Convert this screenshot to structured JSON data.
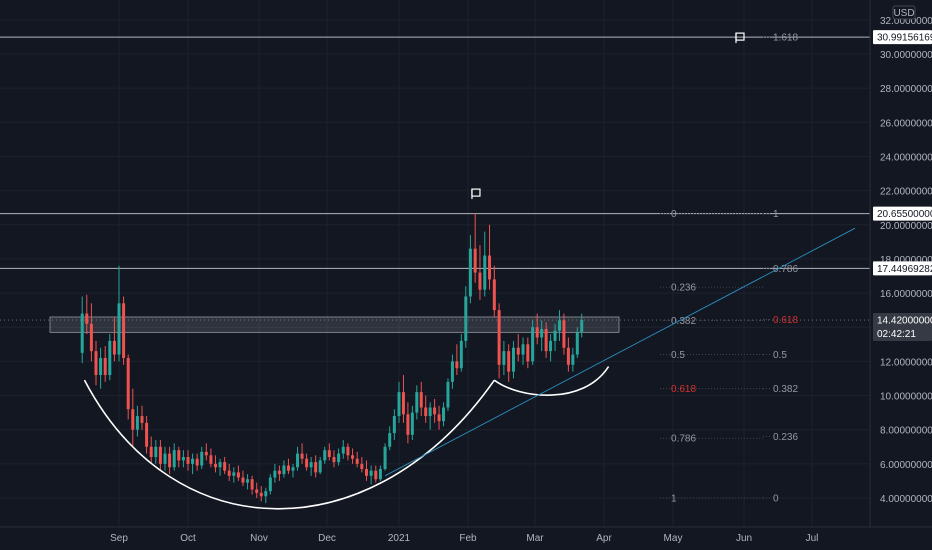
{
  "chart_data": {
    "type": "candlestick",
    "currency": "USD",
    "x_labels": [
      "Sep",
      "Oct",
      "Nov",
      "Dec",
      "2021",
      "Feb",
      "Mar",
      "Apr",
      "May",
      "Jun",
      "Jul"
    ],
    "y_ticks": [
      "4.00000000",
      "6.00000000",
      "8.00000000",
      "10.00000000",
      "12.00000000",
      "14.00000000",
      "16.00000000",
      "18.00000000",
      "20.00000000",
      "22.00000000",
      "24.00000000",
      "26.00000000",
      "28.00000000",
      "30.00000000",
      "32.00000000"
    ],
    "ylim": [
      2.0,
      32.3
    ],
    "price_tags": [
      {
        "label": "30.99156169",
        "value": 30.99156169
      },
      {
        "label": "20.65500000",
        "value": 20.655
      },
      {
        "label": "17.44969282",
        "value": 17.44969282
      }
    ],
    "current_price": {
      "label": "14.42000000",
      "value": 14.42,
      "countdown": "02:42:21"
    },
    "fib_retracement": [
      {
        "label": "0",
        "value": 20.655
      },
      {
        "label": "0.236",
        "value": 16.35
      },
      {
        "label": "0.382",
        "value": 14.4
      },
      {
        "label": "0.5",
        "value": 12.4
      },
      {
        "label": "0.618",
        "value": 10.4,
        "highlight": true
      },
      {
        "label": "0.786",
        "value": 7.5
      },
      {
        "label": "1",
        "value": 4.0
      }
    ],
    "fib_extension": [
      {
        "label": "1.618",
        "value": 30.99
      },
      {
        "label": "1",
        "value": 20.655
      },
      {
        "label": "0.786",
        "value": 17.45
      },
      {
        "label": "0.618",
        "value": 14.45,
        "highlight": true
      },
      {
        "label": "0.5",
        "value": 12.4
      },
      {
        "label": "0.382",
        "value": 10.4
      },
      {
        "label": "0.236",
        "value": 7.6
      },
      {
        "label": "0",
        "value": 4.0
      }
    ],
    "resistance_zone": [
      13.7,
      14.6
    ],
    "series": [
      {
        "date": "2020-08-16",
        "open": 12.5,
        "high": 15.8,
        "low": 11.9,
        "close": 14.8
      },
      {
        "date": "2020-08-18",
        "open": 14.8,
        "high": 15.9,
        "low": 13.6,
        "close": 14.2
      },
      {
        "date": "2020-08-20",
        "open": 14.2,
        "high": 15.4,
        "low": 12.0,
        "close": 12.6
      },
      {
        "date": "2020-08-22",
        "open": 12.6,
        "high": 13.2,
        "low": 10.6,
        "close": 11.2
      },
      {
        "date": "2020-08-24",
        "open": 11.2,
        "high": 12.8,
        "low": 10.4,
        "close": 12.2
      },
      {
        "date": "2020-08-26",
        "open": 12.2,
        "high": 12.9,
        "low": 10.8,
        "close": 11.2
      },
      {
        "date": "2020-08-28",
        "open": 11.2,
        "high": 13.6,
        "low": 10.9,
        "close": 13.2
      },
      {
        "date": "2020-08-30",
        "open": 13.2,
        "high": 14.6,
        "low": 12.0,
        "close": 12.4
      },
      {
        "date": "2020-09-01",
        "open": 12.4,
        "high": 17.6,
        "low": 12.0,
        "close": 15.4
      },
      {
        "date": "2020-09-03",
        "open": 15.4,
        "high": 15.8,
        "low": 11.8,
        "close": 12.2
      },
      {
        "date": "2020-09-05",
        "open": 12.2,
        "high": 12.4,
        "low": 8.6,
        "close": 9.2
      },
      {
        "date": "2020-09-07",
        "open": 9.2,
        "high": 10.4,
        "low": 7.0,
        "close": 8.0
      },
      {
        "date": "2020-09-09",
        "open": 8.0,
        "high": 9.4,
        "low": 7.6,
        "close": 8.8
      },
      {
        "date": "2020-09-11",
        "open": 8.8,
        "high": 9.4,
        "low": 8.0,
        "close": 8.4
      },
      {
        "date": "2020-09-13",
        "open": 8.4,
        "high": 8.8,
        "low": 6.6,
        "close": 7.0
      },
      {
        "date": "2020-09-15",
        "open": 7.0,
        "high": 7.6,
        "low": 6.0,
        "close": 6.4
      },
      {
        "date": "2020-09-17",
        "open": 6.4,
        "high": 7.4,
        "low": 6.0,
        "close": 7.0
      },
      {
        "date": "2020-09-19",
        "open": 7.0,
        "high": 7.4,
        "low": 5.6,
        "close": 6.0
      },
      {
        "date": "2020-09-21",
        "open": 6.0,
        "high": 7.0,
        "low": 5.6,
        "close": 6.6
      },
      {
        "date": "2020-09-23",
        "open": 6.6,
        "high": 7.0,
        "low": 5.4,
        "close": 5.8
      },
      {
        "date": "2020-09-25",
        "open": 5.8,
        "high": 7.2,
        "low": 5.6,
        "close": 6.8
      },
      {
        "date": "2020-09-27",
        "open": 6.8,
        "high": 7.0,
        "low": 5.8,
        "close": 6.2
      },
      {
        "date": "2020-09-29",
        "open": 6.2,
        "high": 6.8,
        "low": 5.8,
        "close": 6.4
      },
      {
        "date": "2020-10-01",
        "open": 6.4,
        "high": 6.8,
        "low": 5.6,
        "close": 6.0
      },
      {
        "date": "2020-10-03",
        "open": 6.0,
        "high": 6.6,
        "low": 5.4,
        "close": 6.3
      },
      {
        "date": "2020-10-05",
        "open": 6.3,
        "high": 6.6,
        "low": 5.6,
        "close": 5.9
      },
      {
        "date": "2020-10-07",
        "open": 5.9,
        "high": 7.0,
        "low": 5.7,
        "close": 6.7
      },
      {
        "date": "2020-10-09",
        "open": 6.7,
        "high": 7.2,
        "low": 6.2,
        "close": 6.5
      },
      {
        "date": "2020-10-11",
        "open": 6.5,
        "high": 6.9,
        "low": 5.8,
        "close": 6.0
      },
      {
        "date": "2020-10-13",
        "open": 6.0,
        "high": 6.5,
        "low": 5.5,
        "close": 5.8
      },
      {
        "date": "2020-10-15",
        "open": 5.8,
        "high": 6.3,
        "low": 5.3,
        "close": 6.1
      },
      {
        "date": "2020-10-17",
        "open": 6.1,
        "high": 6.4,
        "low": 5.4,
        "close": 5.6
      },
      {
        "date": "2020-10-19",
        "open": 5.6,
        "high": 6.0,
        "low": 5.0,
        "close": 5.3
      },
      {
        "date": "2020-10-21",
        "open": 5.3,
        "high": 5.8,
        "low": 4.9,
        "close": 5.5
      },
      {
        "date": "2020-10-23",
        "open": 5.5,
        "high": 5.9,
        "low": 5.0,
        "close": 5.2
      },
      {
        "date": "2020-10-25",
        "open": 5.2,
        "high": 5.6,
        "low": 4.7,
        "close": 4.9
      },
      {
        "date": "2020-10-27",
        "open": 4.9,
        "high": 5.4,
        "low": 4.5,
        "close": 5.1
      },
      {
        "date": "2020-10-29",
        "open": 5.1,
        "high": 5.3,
        "low": 4.2,
        "close": 4.5
      },
      {
        "date": "2020-10-31",
        "open": 4.5,
        "high": 4.9,
        "low": 4.0,
        "close": 4.3
      },
      {
        "date": "2020-11-02",
        "open": 4.3,
        "high": 4.7,
        "low": 3.8,
        "close": 4.1
      },
      {
        "date": "2020-11-04",
        "open": 4.1,
        "high": 4.6,
        "low": 3.7,
        "close": 4.4
      },
      {
        "date": "2020-11-06",
        "open": 4.4,
        "high": 5.4,
        "low": 4.2,
        "close": 5.2
      },
      {
        "date": "2020-11-08",
        "open": 5.2,
        "high": 6.0,
        "low": 4.9,
        "close": 5.6
      },
      {
        "date": "2020-11-10",
        "open": 5.6,
        "high": 5.9,
        "low": 5.0,
        "close": 5.4
      },
      {
        "date": "2020-11-12",
        "open": 5.4,
        "high": 6.2,
        "low": 5.2,
        "close": 5.9
      },
      {
        "date": "2020-11-14",
        "open": 5.9,
        "high": 6.3,
        "low": 5.4,
        "close": 5.6
      },
      {
        "date": "2020-11-16",
        "open": 5.6,
        "high": 6.0,
        "low": 5.2,
        "close": 5.8
      },
      {
        "date": "2020-11-18",
        "open": 5.8,
        "high": 7.0,
        "low": 5.6,
        "close": 6.6
      },
      {
        "date": "2020-11-20",
        "open": 6.6,
        "high": 7.2,
        "low": 6.0,
        "close": 6.3
      },
      {
        "date": "2020-11-22",
        "open": 6.3,
        "high": 6.6,
        "low": 5.6,
        "close": 5.8
      },
      {
        "date": "2020-11-24",
        "open": 5.8,
        "high": 6.4,
        "low": 5.3,
        "close": 6.1
      },
      {
        "date": "2020-11-26",
        "open": 6.1,
        "high": 6.5,
        "low": 5.2,
        "close": 5.5
      },
      {
        "date": "2020-11-28",
        "open": 5.5,
        "high": 6.4,
        "low": 5.4,
        "close": 6.2
      },
      {
        "date": "2020-11-30",
        "open": 6.2,
        "high": 7.0,
        "low": 6.0,
        "close": 6.8
      },
      {
        "date": "2020-12-02",
        "open": 6.8,
        "high": 7.2,
        "low": 6.2,
        "close": 6.4
      },
      {
        "date": "2020-12-04",
        "open": 6.4,
        "high": 6.8,
        "low": 5.8,
        "close": 6.1
      },
      {
        "date": "2020-12-06",
        "open": 6.1,
        "high": 6.9,
        "low": 5.9,
        "close": 6.6
      },
      {
        "date": "2020-12-08",
        "open": 6.6,
        "high": 7.4,
        "low": 6.3,
        "close": 7.0
      },
      {
        "date": "2020-12-10",
        "open": 7.0,
        "high": 7.2,
        "low": 6.2,
        "close": 6.5
      },
      {
        "date": "2020-12-12",
        "open": 6.5,
        "high": 6.9,
        "low": 6.0,
        "close": 6.3
      },
      {
        "date": "2020-12-14",
        "open": 6.3,
        "high": 6.7,
        "low": 5.8,
        "close": 6.0
      },
      {
        "date": "2020-12-16",
        "open": 6.0,
        "high": 6.4,
        "low": 5.5,
        "close": 5.7
      },
      {
        "date": "2020-12-18",
        "open": 5.7,
        "high": 6.2,
        "low": 5.0,
        "close": 5.3
      },
      {
        "date": "2020-12-20",
        "open": 5.3,
        "high": 5.9,
        "low": 4.8,
        "close": 5.6
      },
      {
        "date": "2020-12-22",
        "open": 5.6,
        "high": 5.9,
        "low": 4.9,
        "close": 5.1
      },
      {
        "date": "2020-12-24",
        "open": 5.1,
        "high": 5.9,
        "low": 5.0,
        "close": 5.7
      },
      {
        "date": "2020-12-26",
        "open": 5.7,
        "high": 7.2,
        "low": 5.6,
        "close": 7.0
      },
      {
        "date": "2020-12-28",
        "open": 7.0,
        "high": 8.2,
        "low": 6.8,
        "close": 7.8
      },
      {
        "date": "2020-12-30",
        "open": 7.8,
        "high": 9.2,
        "low": 7.4,
        "close": 8.8
      },
      {
        "date": "2021-01-01",
        "open": 8.8,
        "high": 10.8,
        "low": 8.4,
        "close": 10.2
      },
      {
        "date": "2021-01-03",
        "open": 10.2,
        "high": 11.2,
        "low": 8.4,
        "close": 8.9
      },
      {
        "date": "2021-01-05",
        "open": 8.9,
        "high": 9.6,
        "low": 7.2,
        "close": 7.7
      },
      {
        "date": "2021-01-07",
        "open": 7.7,
        "high": 9.4,
        "low": 7.4,
        "close": 9.0
      },
      {
        "date": "2021-01-09",
        "open": 9.0,
        "high": 10.6,
        "low": 8.6,
        "close": 10.2
      },
      {
        "date": "2021-01-11",
        "open": 10.2,
        "high": 10.8,
        "low": 8.8,
        "close": 9.3
      },
      {
        "date": "2021-01-13",
        "open": 9.3,
        "high": 10.0,
        "low": 8.4,
        "close": 8.8
      },
      {
        "date": "2021-01-15",
        "open": 8.8,
        "high": 9.6,
        "low": 8.0,
        "close": 9.3
      },
      {
        "date": "2021-01-17",
        "open": 9.3,
        "high": 9.8,
        "low": 8.4,
        "close": 8.9
      },
      {
        "date": "2021-01-19",
        "open": 8.9,
        "high": 9.4,
        "low": 8.0,
        "close": 8.5
      },
      {
        "date": "2021-01-21",
        "open": 8.5,
        "high": 9.6,
        "low": 8.2,
        "close": 9.3
      },
      {
        "date": "2021-01-23",
        "open": 9.3,
        "high": 11.0,
        "low": 9.1,
        "close": 10.8
      },
      {
        "date": "2021-01-25",
        "open": 10.8,
        "high": 12.4,
        "low": 10.4,
        "close": 12.0
      },
      {
        "date": "2021-01-27",
        "open": 12.0,
        "high": 13.0,
        "low": 11.2,
        "close": 11.6
      },
      {
        "date": "2021-01-29",
        "open": 11.6,
        "high": 13.6,
        "low": 11.4,
        "close": 13.2
      },
      {
        "date": "2021-01-31",
        "open": 13.2,
        "high": 16.4,
        "low": 12.8,
        "close": 15.8
      },
      {
        "date": "2021-02-02",
        "open": 15.8,
        "high": 19.4,
        "low": 15.4,
        "close": 18.6
      },
      {
        "date": "2021-02-04",
        "open": 18.6,
        "high": 20.65,
        "low": 16.6,
        "close": 17.2
      },
      {
        "date": "2021-02-06",
        "open": 17.2,
        "high": 18.8,
        "low": 15.6,
        "close": 16.2
      },
      {
        "date": "2021-02-08",
        "open": 16.2,
        "high": 19.6,
        "low": 15.8,
        "close": 18.2
      },
      {
        "date": "2021-02-10",
        "open": 18.2,
        "high": 20.0,
        "low": 16.2,
        "close": 16.8
      },
      {
        "date": "2021-02-12",
        "open": 16.8,
        "high": 17.6,
        "low": 14.6,
        "close": 15.0
      },
      {
        "date": "2021-02-14",
        "open": 15.0,
        "high": 15.4,
        "low": 11.0,
        "close": 11.8
      },
      {
        "date": "2021-02-16",
        "open": 11.8,
        "high": 13.2,
        "low": 11.2,
        "close": 12.6
      },
      {
        "date": "2021-02-18",
        "open": 12.6,
        "high": 13.0,
        "low": 10.8,
        "close": 11.4
      },
      {
        "date": "2021-02-20",
        "open": 11.4,
        "high": 13.2,
        "low": 11.0,
        "close": 12.8
      },
      {
        "date": "2021-02-22",
        "open": 12.8,
        "high": 13.6,
        "low": 12.0,
        "close": 12.4
      },
      {
        "date": "2021-02-24",
        "open": 12.4,
        "high": 13.4,
        "low": 11.8,
        "close": 13.0
      },
      {
        "date": "2021-02-26",
        "open": 13.0,
        "high": 13.4,
        "low": 11.6,
        "close": 12.0
      },
      {
        "date": "2021-02-28",
        "open": 12.0,
        "high": 14.4,
        "low": 11.8,
        "close": 14.0
      },
      {
        "date": "2021-03-02",
        "open": 14.0,
        "high": 14.8,
        "low": 13.0,
        "close": 13.4
      },
      {
        "date": "2021-03-04",
        "open": 13.4,
        "high": 14.4,
        "low": 12.6,
        "close": 13.9
      },
      {
        "date": "2021-03-06",
        "open": 13.9,
        "high": 14.3,
        "low": 12.2,
        "close": 12.6
      },
      {
        "date": "2021-03-08",
        "open": 12.6,
        "high": 13.6,
        "low": 12.0,
        "close": 13.2
      },
      {
        "date": "2021-03-10",
        "open": 13.2,
        "high": 14.2,
        "low": 12.6,
        "close": 13.8
      },
      {
        "date": "2021-03-12",
        "open": 13.8,
        "high": 15.0,
        "low": 13.2,
        "close": 14.4
      },
      {
        "date": "2021-03-14",
        "open": 14.4,
        "high": 14.8,
        "low": 12.4,
        "close": 12.8
      },
      {
        "date": "2021-03-16",
        "open": 12.8,
        "high": 13.4,
        "low": 11.4,
        "close": 11.8
      },
      {
        "date": "2021-03-18",
        "open": 11.8,
        "high": 12.8,
        "low": 11.4,
        "close": 12.4
      },
      {
        "date": "2021-03-20",
        "open": 12.4,
        "high": 14.0,
        "low": 12.2,
        "close": 13.7
      },
      {
        "date": "2021-03-22",
        "open": 13.7,
        "high": 14.8,
        "low": 13.4,
        "close": 14.42
      }
    ]
  }
}
